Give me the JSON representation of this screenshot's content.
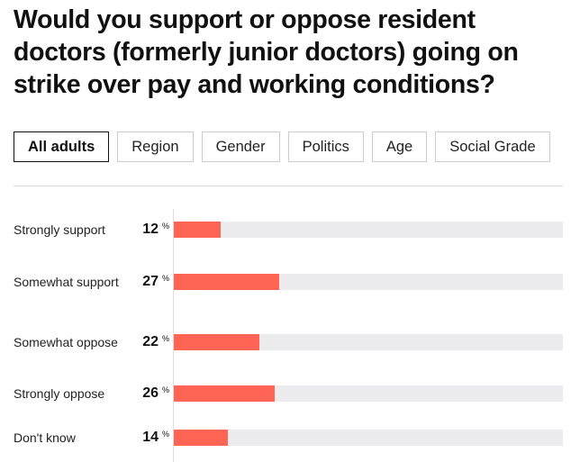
{
  "title": "Would you support or oppose resident doctors (formerly junior doctors) going on strike over pay and working conditions?",
  "tabs": [
    "All adults",
    "Region",
    "Gender",
    "Politics",
    "Age",
    "Social Grade"
  ],
  "active_tab": "All adults",
  "chart_data": {
    "type": "bar",
    "orientation": "horizontal",
    "categories": [
      "Strongly support",
      "Somewhat support",
      "Somewhat oppose",
      "Strongly oppose",
      "Don't know"
    ],
    "values": [
      12,
      27,
      22,
      26,
      14
    ],
    "unit": "%",
    "xlim": [
      0,
      100
    ],
    "bar_color": "#ff6454",
    "track_color": "#ececef"
  }
}
